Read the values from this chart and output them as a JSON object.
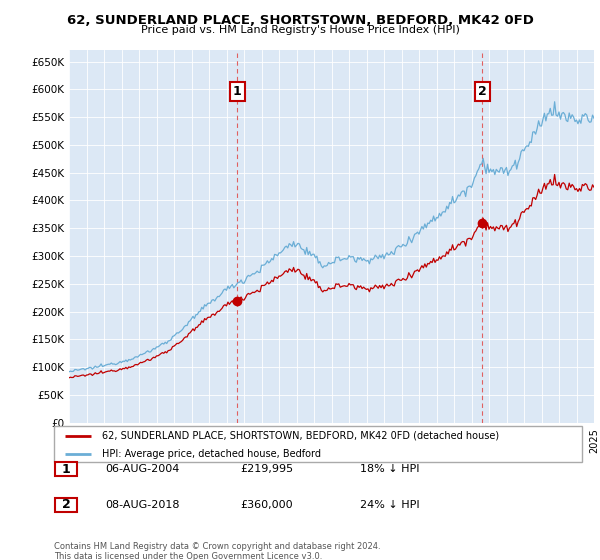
{
  "title": "62, SUNDERLAND PLACE, SHORTSTOWN, BEDFORD, MK42 0FD",
  "subtitle": "Price paid vs. HM Land Registry's House Price Index (HPI)",
  "ylim": [
    0,
    670000
  ],
  "yticks": [
    0,
    50000,
    100000,
    150000,
    200000,
    250000,
    300000,
    350000,
    400000,
    450000,
    500000,
    550000,
    600000,
    650000
  ],
  "background_color": "#ffffff",
  "chart_bg_color": "#dce8f5",
  "grid_color": "#ffffff",
  "hpi_color": "#6baed6",
  "price_color": "#c00000",
  "dashed_color": "#e06060",
  "legend_label_price": "62, SUNDERLAND PLACE, SHORTSTOWN, BEDFORD, MK42 0FD (detached house)",
  "legend_label_hpi": "HPI: Average price, detached house, Bedford",
  "sale1_date_x": 2004.62,
  "sale1_price": 219995,
  "sale1_label": "1",
  "sale2_date_x": 2018.62,
  "sale2_price": 360000,
  "sale2_label": "2",
  "annotation_table": [
    {
      "num": "1",
      "date": "06-AUG-2004",
      "price": "£219,995",
      "change": "18% ↓ HPI"
    },
    {
      "num": "2",
      "date": "08-AUG-2018",
      "price": "£360,000",
      "change": "24% ↓ HPI"
    }
  ],
  "footer": "Contains HM Land Registry data © Crown copyright and database right 2024.\nThis data is licensed under the Open Government Licence v3.0.",
  "xmin": 1995,
  "xmax": 2025
}
